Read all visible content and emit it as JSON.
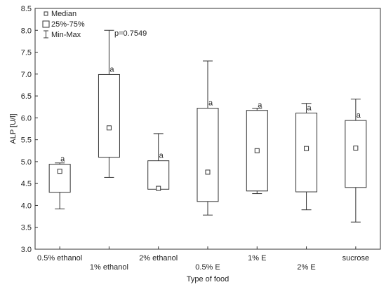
{
  "chart_data": {
    "type": "box",
    "xlabel": "Type of food",
    "ylabel": "ALP [U/l]",
    "ylim": [
      3.0,
      8.5
    ],
    "yticks": [
      3.0,
      3.5,
      4.0,
      4.5,
      5.0,
      5.5,
      6.0,
      6.5,
      7.0,
      7.5,
      8.0,
      8.5
    ],
    "annotation": "p=0.7549",
    "group_letter": "a",
    "legend": {
      "position": "top-left",
      "entries": [
        "Median",
        "25%-75%",
        "Min-Max"
      ]
    },
    "categories": [
      "0.5% ethanol",
      "1% ethanol",
      "2% ethanol",
      "0.5% E",
      "1% E",
      "2% E",
      "sucrose"
    ],
    "min": [
      3.92,
      4.64,
      4.38,
      3.78,
      4.27,
      3.9,
      3.62
    ],
    "q1": [
      4.3,
      5.1,
      4.37,
      4.09,
      4.33,
      4.31,
      4.41
    ],
    "median": [
      4.78,
      5.77,
      4.39,
      4.76,
      5.25,
      5.3,
      5.31
    ],
    "q3": [
      4.94,
      6.99,
      5.02,
      6.22,
      6.17,
      6.11,
      5.94
    ],
    "max": [
      4.97,
      8.0,
      5.64,
      7.3,
      6.22,
      6.33,
      6.43
    ]
  }
}
